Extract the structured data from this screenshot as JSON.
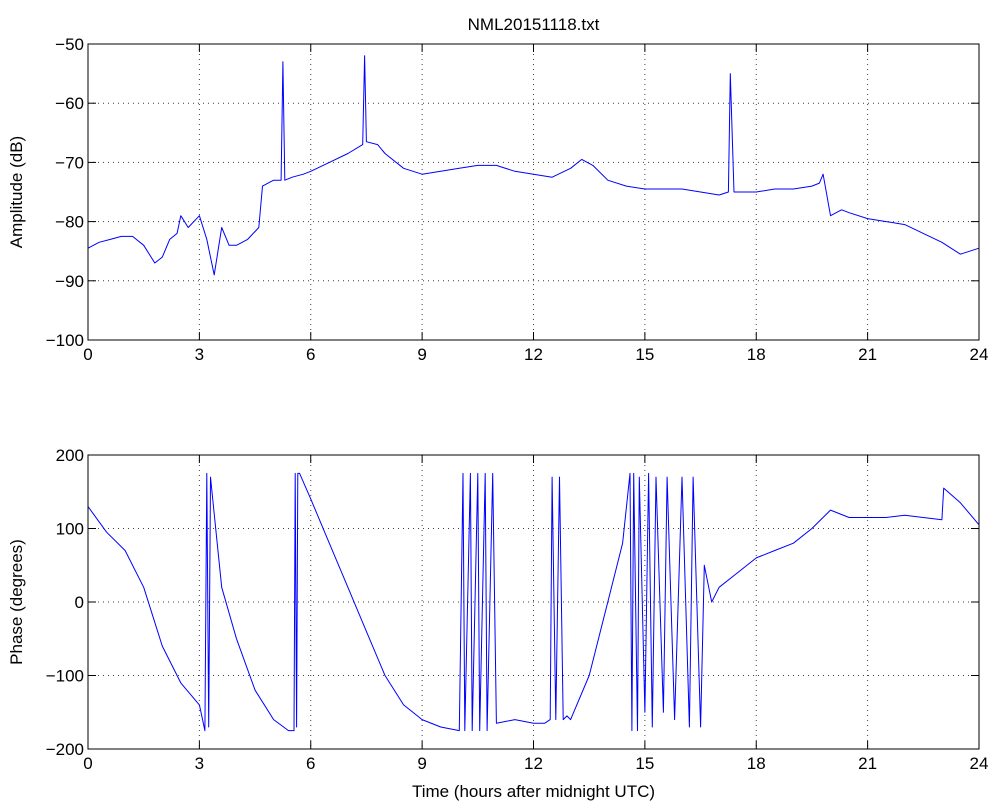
{
  "chart_data": [
    {
      "type": "line",
      "title": "NML20151118.txt",
      "xlabel": "",
      "ylabel": "Amplitude (dB)",
      "xlim": [
        0,
        24
      ],
      "ylim": [
        -100,
        -50
      ],
      "xticks": [
        0,
        3,
        6,
        9,
        12,
        15,
        18,
        21,
        24
      ],
      "yticks": [
        -100,
        -90,
        -80,
        -70,
        -60,
        -50
      ],
      "grid": true,
      "color": "#0000ff",
      "series": [
        {
          "x": [
            0,
            0.3,
            0.6,
            0.9,
            1.2,
            1.5,
            1.8,
            2.0,
            2.2,
            2.4,
            2.5,
            2.7,
            3.0,
            3.2,
            3.4,
            3.6,
            3.8,
            4.0,
            4.3,
            4.6,
            4.7,
            5.0,
            5.2,
            5.25,
            5.3,
            5.5,
            5.8,
            6.0,
            6.5,
            7.0,
            7.4,
            7.45,
            7.5,
            7.8,
            8.0,
            8.5,
            9.0,
            9.5,
            10.0,
            10.5,
            11.0,
            11.5,
            12.0,
            12.5,
            13.0,
            13.3,
            13.6,
            14.0,
            14.5,
            15.0,
            15.5,
            16.0,
            16.5,
            17.0,
            17.25,
            17.3,
            17.4,
            17.6,
            18.0,
            18.5,
            19.0,
            19.5,
            19.7,
            19.8,
            20.0,
            20.3,
            20.5,
            21.0,
            21.5,
            22.0,
            22.5,
            23.0,
            23.5,
            24.0
          ],
          "y": [
            -84.5,
            -83.5,
            -83,
            -82.5,
            -82.5,
            -84,
            -87,
            -86,
            -83,
            -82,
            -79,
            -81,
            -79,
            -83,
            -89,
            -81,
            -84,
            -84,
            -83,
            -81,
            -74,
            -73,
            -73,
            -53,
            -73,
            -72.5,
            -72,
            -71.5,
            -70,
            -68.5,
            -67,
            -52,
            -66.5,
            -67,
            -68.5,
            -71,
            -72,
            -71.5,
            -71,
            -70.5,
            -70.5,
            -71.5,
            -72,
            -72.5,
            -71,
            -69.5,
            -70.5,
            -73,
            -74,
            -74.5,
            -74.5,
            -74.5,
            -75,
            -75.5,
            -75,
            -55,
            -75,
            -75,
            -75,
            -74.5,
            -74.5,
            -74,
            -73.5,
            -72,
            -79,
            -78,
            -78.5,
            -79.5,
            -80,
            -80.5,
            -82,
            -83.5,
            -85.5,
            -84.5
          ]
        }
      ]
    },
    {
      "type": "line",
      "title": "",
      "xlabel": "Time (hours after midnight UTC)",
      "ylabel": "Phase (degrees)",
      "xlim": [
        0,
        24
      ],
      "ylim": [
        -200,
        200
      ],
      "xticks": [
        0,
        3,
        6,
        9,
        12,
        15,
        18,
        21,
        24
      ],
      "yticks": [
        -200,
        -100,
        0,
        100,
        200
      ],
      "grid": true,
      "color": "#0000ff",
      "series": [
        {
          "x": [
            0,
            0.5,
            1.0,
            1.5,
            2.0,
            2.5,
            3.0,
            3.15,
            3.2,
            3.25,
            3.3,
            3.4,
            3.6,
            4.0,
            4.5,
            5.0,
            5.4,
            5.55,
            5.58,
            5.62,
            5.65,
            5.7,
            6.0,
            6.5,
            7.0,
            7.5,
            8.0,
            8.5,
            9.0,
            9.5,
            10.0,
            10.1,
            10.15,
            10.3,
            10.35,
            10.5,
            10.55,
            10.7,
            10.75,
            10.9,
            11.0,
            11.5,
            12.0,
            12.3,
            12.45,
            12.5,
            12.6,
            12.7,
            12.8,
            12.9,
            13.0,
            13.5,
            14.0,
            14.4,
            14.6,
            14.65,
            14.7,
            14.8,
            14.85,
            15.0,
            15.1,
            15.2,
            15.3,
            15.5,
            15.6,
            15.8,
            16.0,
            16.2,
            16.3,
            16.5,
            16.6,
            16.8,
            17.0,
            17.5,
            18.0,
            18.5,
            19.0,
            19.5,
            20.0,
            20.5,
            21.0,
            21.5,
            22.0,
            22.5,
            23.0,
            23.05,
            23.5,
            24.0
          ],
          "y": [
            130,
            95,
            70,
            20,
            -60,
            -110,
            -140,
            -175,
            175,
            -170,
            170,
            120,
            20,
            -50,
            -120,
            -160,
            -175,
            -175,
            175,
            -170,
            175,
            175,
            140,
            80,
            20,
            -40,
            -100,
            -140,
            -160,
            -170,
            -175,
            175,
            -175,
            175,
            -175,
            175,
            -175,
            175,
            -175,
            175,
            -165,
            -160,
            -165,
            -165,
            -160,
            170,
            -160,
            170,
            -160,
            -155,
            -160,
            -100,
            0,
            80,
            175,
            -175,
            175,
            -175,
            170,
            -150,
            175,
            -170,
            170,
            -150,
            170,
            -160,
            170,
            -170,
            170,
            -170,
            50,
            0,
            20,
            40,
            60,
            70,
            80,
            100,
            125,
            115,
            115,
            115,
            118,
            115,
            112,
            155,
            135,
            105
          ]
        }
      ]
    }
  ]
}
